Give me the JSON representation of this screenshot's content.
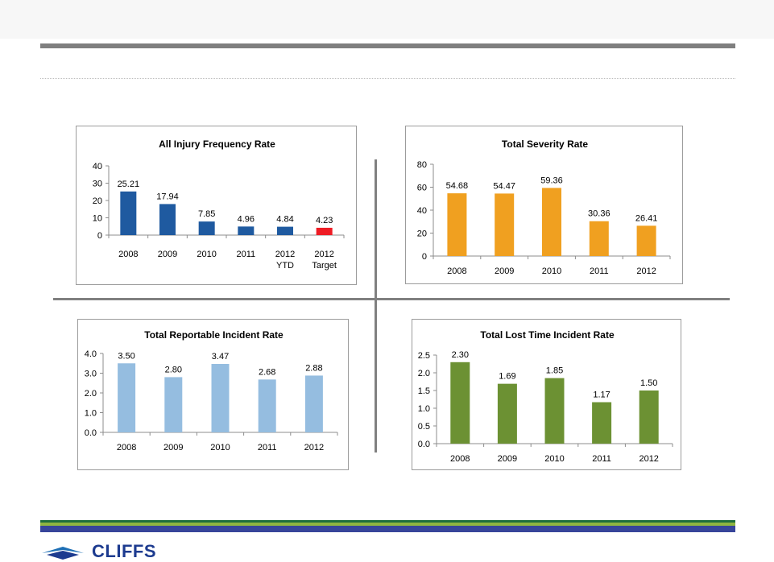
{
  "chart_data": [
    {
      "type": "bar",
      "title": "All Injury Frequency Rate",
      "categories": [
        [
          "2008"
        ],
        [
          "2009"
        ],
        [
          "2010"
        ],
        [
          "2011"
        ],
        [
          "2012",
          "YTD"
        ],
        [
          "2012",
          "Target"
        ]
      ],
      "values": [
        25.21,
        17.94,
        7.85,
        4.96,
        4.84,
        4.23
      ],
      "data_labels": [
        "25.21",
        "17.94",
        "7.85",
        "4.96",
        "4.84",
        "4.23"
      ],
      "colors": [
        "#1f5aa0",
        "#1f5aa0",
        "#1f5aa0",
        "#1f5aa0",
        "#1f5aa0",
        "#ee1c24"
      ],
      "ylim": [
        0,
        40
      ],
      "yticks": [
        "0",
        "10",
        "20",
        "30",
        "40"
      ]
    },
    {
      "type": "bar",
      "title": "Total Severity Rate",
      "categories": [
        [
          "2008"
        ],
        [
          "2009"
        ],
        [
          "2010"
        ],
        [
          "2011"
        ],
        [
          "2012"
        ]
      ],
      "values": [
        54.68,
        54.47,
        59.36,
        30.36,
        26.41
      ],
      "data_labels": [
        "54.68",
        "54.47",
        "59.36",
        "30.36",
        "26.41"
      ],
      "colors": [
        "#f0a020",
        "#f0a020",
        "#f0a020",
        "#f0a020",
        "#f0a020"
      ],
      "ylim": [
        0,
        80
      ],
      "yticks": [
        "0",
        "20",
        "40",
        "60",
        "80"
      ]
    },
    {
      "type": "bar",
      "title": "Total Reportable Incident Rate",
      "categories": [
        [
          "2008"
        ],
        [
          "2009"
        ],
        [
          "2010"
        ],
        [
          "2011"
        ],
        [
          "2012"
        ]
      ],
      "values": [
        3.5,
        2.8,
        3.47,
        2.68,
        2.88
      ],
      "data_labels": [
        "3.50",
        "2.80",
        "3.47",
        "2.68",
        "2.88"
      ],
      "colors": [
        "#95bde0",
        "#95bde0",
        "#95bde0",
        "#95bde0",
        "#95bde0"
      ],
      "ylim": [
        0,
        4
      ],
      "yticks": [
        "0.0",
        "1.0",
        "2.0",
        "3.0",
        "4.0"
      ]
    },
    {
      "type": "bar",
      "title": "Total Lost Time Incident Rate",
      "categories": [
        [
          "2008"
        ],
        [
          "2009"
        ],
        [
          "2010"
        ],
        [
          "2011"
        ],
        [
          "2012"
        ]
      ],
      "values": [
        2.3,
        1.69,
        1.85,
        1.17,
        1.5
      ],
      "data_labels": [
        "2.30",
        "1.69",
        "1.85",
        "1.17",
        "1.50"
      ],
      "colors": [
        "#6c9133",
        "#6c9133",
        "#6c9133",
        "#6c9133",
        "#6c9133"
      ],
      "ylim": [
        0,
        2.5
      ],
      "yticks": [
        "0.0",
        "0.5",
        "1.0",
        "1.5",
        "2.0",
        "2.5"
      ]
    }
  ],
  "brand": {
    "name": "CLIFFS",
    "text_color": "#1d3b8f",
    "stripe_colors": [
      "#1f6e3b",
      "#8fb540",
      "#37459a"
    ]
  }
}
